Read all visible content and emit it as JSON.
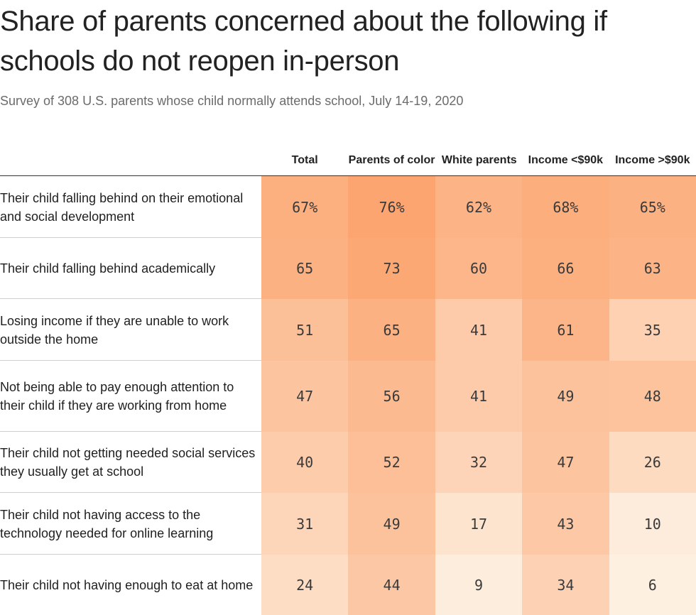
{
  "title": "Share of parents concerned about the following if schools do not reopen in-person",
  "subtitle": "Survey of 308 U.S. parents whose child normally attends school, July 14-19, 2020",
  "chart_data": {
    "type": "table",
    "columns": [
      "Total",
      "Parents of color",
      "White parents",
      "Income <$90k",
      "Income >$90k"
    ],
    "rows": [
      {
        "label": "Their child falling behind on their emotional and social development",
        "values": [
          67,
          76,
          62,
          68,
          65
        ],
        "display": [
          "67%",
          "76%",
          "62%",
          "68%",
          "65%"
        ]
      },
      {
        "label": "Their child falling behind academically",
        "values": [
          65,
          73,
          60,
          66,
          63
        ],
        "display": [
          "65",
          "73",
          "60",
          "66",
          "63"
        ]
      },
      {
        "label": "Losing income if they are unable to work outside the home",
        "values": [
          51,
          65,
          41,
          61,
          35
        ],
        "display": [
          "51",
          "65",
          "41",
          "61",
          "35"
        ]
      },
      {
        "label": "Not being able to pay enough attention to their child if they are working from home",
        "values": [
          47,
          56,
          41,
          49,
          48
        ],
        "display": [
          "47",
          "56",
          "41",
          "49",
          "48"
        ]
      },
      {
        "label": "Their child not getting needed social services they usually get at school",
        "values": [
          40,
          52,
          32,
          47,
          26
        ],
        "display": [
          "40",
          "52",
          "32",
          "47",
          "26"
        ]
      },
      {
        "label": "Their child not having access to the technology needed for online learning",
        "values": [
          31,
          49,
          17,
          43,
          10
        ],
        "display": [
          "31",
          "49",
          "17",
          "43",
          "10"
        ]
      },
      {
        "label": "Their child not having enough to eat at home",
        "values": [
          24,
          44,
          9,
          34,
          6
        ],
        "display": [
          "24",
          "44",
          "9",
          "34",
          "6"
        ]
      }
    ],
    "color_scale": {
      "low_color": "#fdf0e1",
      "high_color": "#fca570"
    }
  }
}
